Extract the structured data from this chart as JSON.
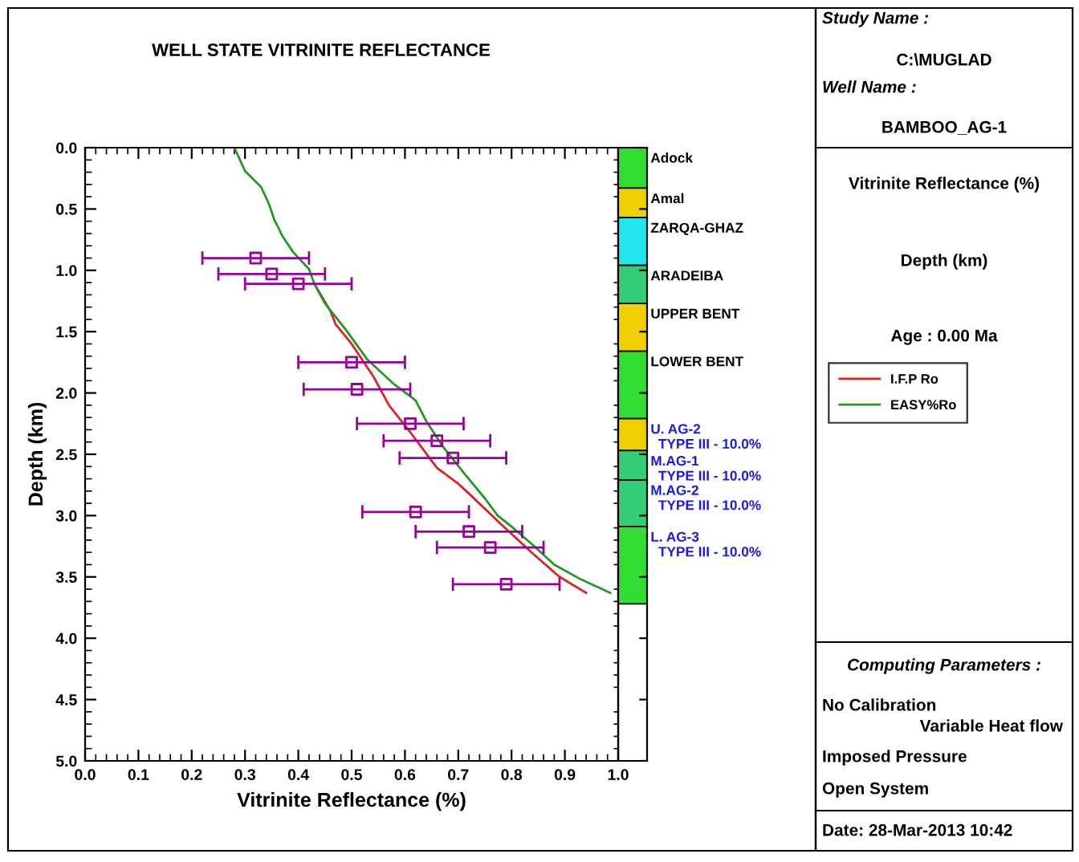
{
  "chart_data": {
    "type": "line",
    "title": "WELL STATE VITRINITE REFLECTANCE",
    "xlabel": "Vitrinite Reflectance (%)",
    "ylabel": "Depth (km)",
    "xlim": [
      0,
      1
    ],
    "ylim": [
      5,
      0
    ],
    "xticks": [
      {
        "value": 0,
        "label": "0.0"
      },
      0.1,
      0.2,
      0.3,
      0.4,
      0.5,
      0.6,
      0.7,
      0.8,
      0.9,
      {
        "value": 1,
        "label": "1.0"
      }
    ],
    "yticks": [
      {
        "value": 0,
        "label": "0.0"
      },
      0.5,
      {
        "value": 1,
        "label": "1.0"
      },
      1.5,
      {
        "value": 2,
        "label": "2.0"
      },
      2.5,
      {
        "value": 3,
        "label": "3.0"
      },
      3.5,
      {
        "value": 4,
        "label": "4.0"
      },
      4.5,
      {
        "value": 5,
        "label": "5.0"
      }
    ],
    "grid": false,
    "legend": "right",
    "series": [
      {
        "name": "I.F.P Ro",
        "color": "#e02020",
        "x": [
          0.43,
          0.46,
          0.47,
          0.5,
          0.54,
          0.57,
          0.61,
          0.66,
          0.7,
          0.72,
          0.78,
          0.84,
          0.89,
          0.94
        ],
        "values": [
          1.11,
          1.33,
          1.44,
          1.6,
          1.86,
          2.1,
          2.32,
          2.61,
          2.74,
          2.82,
          3.07,
          3.31,
          3.5,
          3.63
        ]
      },
      {
        "name": "EASY%Ro",
        "color": "#229922",
        "x": [
          0.28,
          0.3,
          0.33,
          0.345,
          0.355,
          0.36,
          0.37,
          0.39,
          0.42,
          0.43,
          0.45,
          0.49,
          0.53,
          0.58,
          0.62,
          0.64,
          0.67,
          0.71,
          0.75,
          0.774,
          0.8,
          0.84,
          0.88,
          0.93,
          0.985
        ],
        "values": [
          0,
          0.19,
          0.32,
          0.46,
          0.59,
          0.63,
          0.72,
          0.85,
          0.99,
          1.11,
          1.27,
          1.49,
          1.73,
          1.93,
          2.06,
          2.23,
          2.43,
          2.65,
          2.86,
          3.0,
          3.09,
          3.24,
          3.4,
          3.52,
          3.63
        ]
      },
      {
        "type": "scatter",
        "color": "#990099",
        "marker": "square",
        "x": [
          0.32,
          0.35,
          0.4,
          0.5,
          0.51,
          0.61,
          0.66,
          0.69,
          0.62,
          0.72,
          0.76,
          0.79
        ],
        "values": [
          0.9,
          1.03,
          1.11,
          1.75,
          1.97,
          2.25,
          2.39,
          2.53,
          2.97,
          3.13,
          3.26,
          3.56
        ],
        "xerrors": [
          0.1,
          0.1,
          0.1,
          0.1,
          0.1,
          0.1,
          0.1,
          0.1,
          0.1,
          0.1,
          0.1,
          0.1
        ]
      }
    ],
    "annotations": [
      "Study Name :",
      "C:\\MUGLAD",
      "Well Name :",
      "BAMBOO_AG-1",
      "Vitrinite Reflectance (%)",
      "Depth (km)",
      "Age : 0.00 Ma",
      "Computing Parameters :",
      "No Calibration",
      "Variable Heat flow",
      "Imposed Pressure",
      "Open System",
      "Date: 28-Mar-2013 10:42",
      "Adock",
      "Amal",
      "ZARQA-GHAZ",
      "ARADEIBA",
      "UPPER BENT",
      "LOWER BENT",
      "U. AG-2\n  TYPE III - 10.0%",
      "M.AG-1\n  TYPE III - 10.0%",
      "M.AG-2\n  TYPE III - 10.0%",
      "L. AG-3\n  TYPE III - 10.0%"
    ]
  }
}
